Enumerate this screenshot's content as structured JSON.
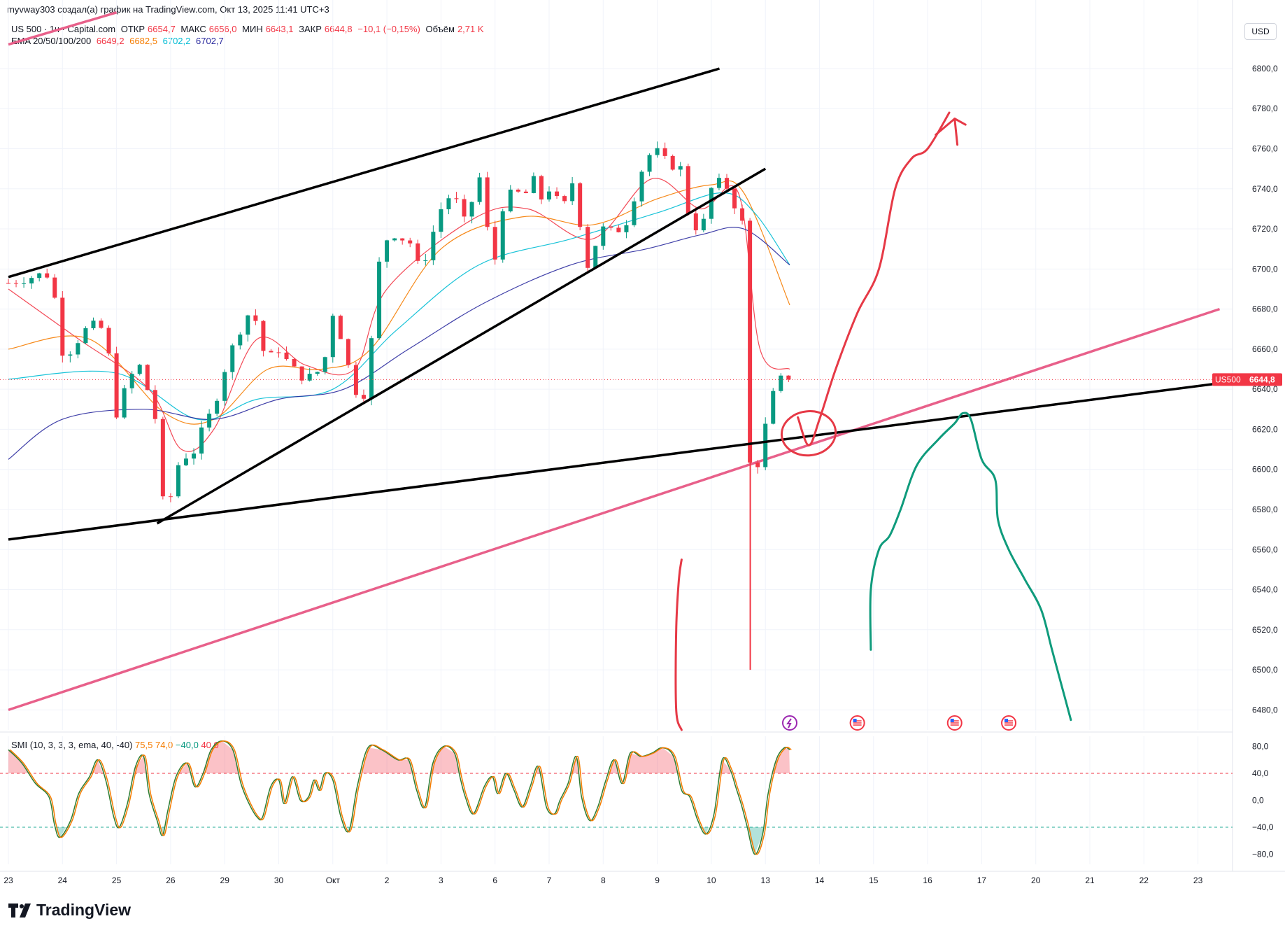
{
  "attribution": "myvway303 создал(а) график на TradingView.com, Окт 13, 2025 11:41 UTC+3",
  "legend": {
    "symbol": "US 500 · 1ч · Capital.com",
    "open_label": "ОТКР",
    "open": "6654,7",
    "high_label": "МАКС",
    "high": "6656,0",
    "low_label": "МИН",
    "low": "6643,1",
    "close_label": "ЗАКР",
    "close": "6644,8",
    "change": "−10,1 (−0,15%)",
    "volume_label": "Объём",
    "volume": "2,71 K",
    "ema_label": "EMA 20/50/100/200",
    "ema20": "6649,2",
    "ema50": "6682,5",
    "ema100": "6702,2",
    "ema200": "6702,7"
  },
  "smi_legend": {
    "label": "SMI (10, 3, 3, 3, ema, 40, -40)",
    "v1": "75,5",
    "v2": "74,0",
    "v3": "−40,0",
    "v4": "40,0"
  },
  "currency": "USD",
  "price_tag": {
    "symbol": "US500",
    "value": "6644,8"
  },
  "brand": "TradingView",
  "colors": {
    "up": "#089981",
    "down": "#f23645",
    "ema20": "#f23645",
    "ema50": "#f57c00",
    "ema100": "#00bcd4",
    "ema200": "#2a2a9e",
    "trend": "#000000",
    "pink": "#e8608a",
    "drawing_red": "#e63946",
    "drawing_green": "#0f9b7c"
  },
  "chart_data": {
    "type": "candlestick",
    "timeframe": "1h",
    "y_axis": {
      "range": [
        6470,
        6815
      ],
      "ticks": [
        "6800,0",
        "6780,0",
        "6760,0",
        "6740,0",
        "6720,0",
        "6700,0",
        "6680,0",
        "6660,0",
        "6640,0",
        "6620,0",
        "6600,0",
        "6580,0",
        "6560,0",
        "6540,0",
        "6520,0",
        "6500,0",
        "6480,0"
      ],
      "tick_values": [
        6800,
        6780,
        6760,
        6740,
        6720,
        6700,
        6680,
        6660,
        6640,
        6620,
        6600,
        6580,
        6560,
        6540,
        6520,
        6500,
        6480
      ]
    },
    "x_axis": {
      "labels": [
        "23",
        "24",
        "25",
        "26",
        "29",
        "30",
        "Окт",
        "2",
        "3",
        "6",
        "7",
        "8",
        "9",
        "10",
        "13",
        "14",
        "15",
        "16",
        "17",
        "20",
        "21",
        "22",
        "23"
      ],
      "trading_day_index": [
        0,
        1,
        2,
        3,
        4,
        5,
        6,
        7,
        8,
        9,
        10,
        11,
        12,
        13,
        14,
        15,
        16,
        17,
        18,
        19,
        20,
        21,
        22
      ],
      "data_end_day": 14.45
    },
    "price_anchors": [
      [
        0.0,
        6693
      ],
      [
        0.3,
        6695
      ],
      [
        0.7,
        6698
      ],
      [
        0.82,
        6690
      ],
      [
        0.9,
        6680
      ],
      [
        0.95,
        6660
      ],
      [
        1.05,
        6658
      ],
      [
        1.2,
        6660
      ],
      [
        1.35,
        6668
      ],
      [
        1.55,
        6672
      ],
      [
        1.75,
        6670
      ],
      [
        1.85,
        6658
      ],
      [
        1.95,
        6638
      ],
      [
        2.0,
        6628
      ],
      [
        2.1,
        6636
      ],
      [
        2.3,
        6648
      ],
      [
        2.45,
        6652
      ],
      [
        2.55,
        6642
      ],
      [
        2.65,
        6632
      ],
      [
        2.75,
        6622
      ],
      [
        2.8,
        6600
      ],
      [
        2.85,
        6585
      ],
      [
        2.92,
        6578
      ],
      [
        2.98,
        6582
      ],
      [
        3.05,
        6598
      ],
      [
        3.2,
        6605
      ],
      [
        3.35,
        6608
      ],
      [
        3.5,
        6610
      ],
      [
        3.6,
        6622
      ],
      [
        3.75,
        6628
      ],
      [
        3.9,
        6640
      ],
      [
        4.0,
        6650
      ],
      [
        4.2,
        6665
      ],
      [
        4.4,
        6676
      ],
      [
        4.5,
        6680
      ],
      [
        4.6,
        6672
      ],
      [
        4.7,
        6660
      ],
      [
        4.8,
        6655
      ],
      [
        5.0,
        6660
      ],
      [
        5.2,
        6652
      ],
      [
        5.35,
        6648
      ],
      [
        5.5,
        6645
      ],
      [
        5.7,
        6648
      ],
      [
        5.85,
        6655
      ],
      [
        6.0,
        6678
      ],
      [
        6.1,
        6672
      ],
      [
        6.2,
        6660
      ],
      [
        6.3,
        6650
      ],
      [
        6.42,
        6640
      ],
      [
        6.5,
        6632
      ],
      [
        6.6,
        6640
      ],
      [
        6.7,
        6660
      ],
      [
        6.8,
        6690
      ],
      [
        6.9,
        6712
      ],
      [
        7.1,
        6718
      ],
      [
        7.3,
        6715
      ],
      [
        7.5,
        6712
      ],
      [
        7.6,
        6698
      ],
      [
        7.7,
        6705
      ],
      [
        7.85,
        6718
      ],
      [
        8.0,
        6730
      ],
      [
        8.2,
        6738
      ],
      [
        8.35,
        6730
      ],
      [
        8.5,
        6718
      ],
      [
        8.6,
        6740
      ],
      [
        8.7,
        6748
      ],
      [
        8.8,
        6730
      ],
      [
        8.9,
        6712
      ],
      [
        9.0,
        6705
      ],
      [
        9.1,
        6728
      ],
      [
        9.2,
        6735
      ],
      [
        9.4,
        6740
      ],
      [
        9.5,
        6732
      ],
      [
        9.6,
        6740
      ],
      [
        9.7,
        6745
      ],
      [
        9.85,
        6735
      ],
      [
        10.0,
        6740
      ],
      [
        10.1,
        6735
      ],
      [
        10.3,
        6732
      ],
      [
        10.45,
        6745
      ],
      [
        10.55,
        6728
      ],
      [
        10.65,
        6705
      ],
      [
        10.75,
        6700
      ],
      [
        10.85,
        6712
      ],
      [
        11.0,
        6720
      ],
      [
        11.2,
        6718
      ],
      [
        11.4,
        6722
      ],
      [
        11.5,
        6728
      ],
      [
        11.65,
        6745
      ],
      [
        11.8,
        6755
      ],
      [
        11.95,
        6760
      ],
      [
        12.1,
        6755
      ],
      [
        12.25,
        6752
      ],
      [
        12.45,
        6750
      ],
      [
        12.55,
        6730
      ],
      [
        12.7,
        6722
      ],
      [
        12.8,
        6715
      ],
      [
        12.9,
        6730
      ],
      [
        13.05,
        6745
      ],
      [
        13.2,
        6742
      ],
      [
        13.35,
        6740
      ],
      [
        13.45,
        6730
      ],
      [
        13.5,
        6752
      ],
      [
        13.55,
        6740
      ],
      [
        13.6,
        6700
      ],
      [
        13.65,
        6640
      ],
      [
        13.7,
        6612
      ],
      [
        13.75,
        6580
      ],
      [
        13.8,
        6560
      ],
      [
        13.85,
        6602
      ],
      [
        13.95,
        6615
      ],
      [
        14.05,
        6628
      ],
      [
        14.15,
        6638
      ],
      [
        14.25,
        6642
      ],
      [
        14.35,
        6650
      ],
      [
        14.45,
        6645
      ]
    ],
    "ema_anchors": {
      "ema20": [
        [
          0,
          6690
        ],
        [
          1.3,
          6665
        ],
        [
          2.6,
          6640
        ],
        [
          3.2,
          6610
        ],
        [
          3.8,
          6620
        ],
        [
          4.6,
          6665
        ],
        [
          5.5,
          6652
        ],
        [
          6.4,
          6650
        ],
        [
          7.0,
          6690
        ],
        [
          8.6,
          6725
        ],
        [
          9.6,
          6730
        ],
        [
          10.8,
          6715
        ],
        [
          11.9,
          6745
        ],
        [
          12.8,
          6730
        ],
        [
          13.5,
          6738
        ],
        [
          13.9,
          6660
        ],
        [
          14.45,
          6650
        ]
      ],
      "ema50": [
        [
          0,
          6660
        ],
        [
          1.5,
          6665
        ],
        [
          2.9,
          6628
        ],
        [
          3.8,
          6625
        ],
        [
          4.8,
          6650
        ],
        [
          5.8,
          6650
        ],
        [
          6.7,
          6660
        ],
        [
          8.0,
          6710
        ],
        [
          9.5,
          6726
        ],
        [
          10.8,
          6722
        ],
        [
          12.0,
          6735
        ],
        [
          13.0,
          6742
        ],
        [
          13.6,
          6738
        ],
        [
          14.45,
          6682
        ]
      ],
      "ema100": [
        [
          0,
          6645
        ],
        [
          2.0,
          6648
        ],
        [
          3.5,
          6625
        ],
        [
          4.6,
          6635
        ],
        [
          6.0,
          6640
        ],
        [
          7.2,
          6670
        ],
        [
          8.7,
          6702
        ],
        [
          10.4,
          6715
        ],
        [
          12.0,
          6728
        ],
        [
          13.2,
          6738
        ],
        [
          13.8,
          6728
        ],
        [
          14.45,
          6702
        ]
      ],
      "ema200": [
        [
          0,
          6605
        ],
        [
          1.0,
          6625
        ],
        [
          2.5,
          6630
        ],
        [
          3.8,
          6625
        ],
        [
          5.0,
          6635
        ],
        [
          6.2,
          6640
        ],
        [
          7.4,
          6660
        ],
        [
          8.8,
          6683
        ],
        [
          10.4,
          6702
        ],
        [
          11.8,
          6710
        ],
        [
          12.8,
          6717
        ],
        [
          13.6,
          6720
        ],
        [
          14.45,
          6702
        ]
      ]
    },
    "smi_axis": {
      "range": [
        -95,
        95
      ],
      "ticks": [
        "80,0",
        "40,0",
        "0,0",
        "−40,0",
        "−80,0"
      ],
      "tick_values": [
        80,
        40,
        0,
        -40,
        -80
      ],
      "overbought": 40,
      "oversold": -40
    },
    "smi_anchors": [
      [
        0.0,
        75
      ],
      [
        0.25,
        55
      ],
      [
        0.5,
        25
      ],
      [
        0.75,
        5
      ],
      [
        0.85,
        -35
      ],
      [
        0.95,
        -55
      ],
      [
        1.15,
        -30
      ],
      [
        1.3,
        10
      ],
      [
        1.5,
        35
      ],
      [
        1.65,
        60
      ],
      [
        1.8,
        30
      ],
      [
        1.95,
        -25
      ],
      [
        2.05,
        -40
      ],
      [
        2.2,
        -5
      ],
      [
        2.35,
        50
      ],
      [
        2.5,
        65
      ],
      [
        2.6,
        10
      ],
      [
        2.75,
        -30
      ],
      [
        2.85,
        -52
      ],
      [
        2.95,
        -15
      ],
      [
        3.1,
        35
      ],
      [
        3.3,
        55
      ],
      [
        3.45,
        20
      ],
      [
        3.6,
        40
      ],
      [
        3.75,
        75
      ],
      [
        3.95,
        88
      ],
      [
        4.15,
        75
      ],
      [
        4.3,
        25
      ],
      [
        4.45,
        -5
      ],
      [
        4.6,
        -25
      ],
      [
        4.7,
        -25
      ],
      [
        4.85,
        20
      ],
      [
        5.0,
        30
      ],
      [
        5.1,
        -5
      ],
      [
        5.25,
        35
      ],
      [
        5.4,
        0
      ],
      [
        5.55,
        5
      ],
      [
        5.65,
        30
      ],
      [
        5.75,
        15
      ],
      [
        5.85,
        40
      ],
      [
        6.0,
        30
      ],
      [
        6.15,
        -25
      ],
      [
        6.3,
        -45
      ],
      [
        6.45,
        20
      ],
      [
        6.65,
        78
      ],
      [
        6.9,
        75
      ],
      [
        7.2,
        60
      ],
      [
        7.4,
        60
      ],
      [
        7.55,
        15
      ],
      [
        7.7,
        -10
      ],
      [
        7.85,
        55
      ],
      [
        8.05,
        80
      ],
      [
        8.25,
        70
      ],
      [
        8.35,
        35
      ],
      [
        8.45,
        5
      ],
      [
        8.6,
        -20
      ],
      [
        8.8,
        20
      ],
      [
        8.95,
        35
      ],
      [
        9.05,
        10
      ],
      [
        9.2,
        40
      ],
      [
        9.35,
        15
      ],
      [
        9.5,
        -10
      ],
      [
        9.65,
        20
      ],
      [
        9.8,
        50
      ],
      [
        9.95,
        -10
      ],
      [
        10.1,
        -20
      ],
      [
        10.2,
        0
      ],
      [
        10.35,
        25
      ],
      [
        10.5,
        65
      ],
      [
        10.6,
        5
      ],
      [
        10.75,
        -30
      ],
      [
        10.9,
        -10
      ],
      [
        11.05,
        30
      ],
      [
        11.2,
        60
      ],
      [
        11.35,
        25
      ],
      [
        11.5,
        70
      ],
      [
        11.7,
        65
      ],
      [
        11.9,
        70
      ],
      [
        12.1,
        78
      ],
      [
        12.3,
        65
      ],
      [
        12.45,
        15
      ],
      [
        12.6,
        5
      ],
      [
        12.75,
        -30
      ],
      [
        12.9,
        -50
      ],
      [
        13.05,
        -20
      ],
      [
        13.2,
        60
      ],
      [
        13.35,
        45
      ],
      [
        13.45,
        20
      ],
      [
        13.55,
        -5
      ],
      [
        13.65,
        -35
      ],
      [
        13.8,
        -80
      ],
      [
        13.95,
        -50
      ],
      [
        14.05,
        10
      ],
      [
        14.2,
        60
      ],
      [
        14.35,
        78
      ],
      [
        14.45,
        75
      ]
    ],
    "drawings": {
      "black_lines": [
        [
          [
            0.0,
            6696
          ],
          [
            13.15,
            6800
          ]
        ],
        [
          [
            2.75,
            6573
          ],
          [
            14.0,
            6750
          ]
        ],
        [
          [
            0.0,
            6565
          ],
          [
            22.4,
            6643
          ]
        ]
      ],
      "pink_lines": [
        [
          [
            0.0,
            6480
          ],
          [
            22.4,
            6680
          ]
        ],
        [
          [
            0.0,
            6812
          ],
          [
            2.0,
            6828
          ]
        ]
      ],
      "red_arrow_curve": [
        [
          14.6,
          6626
        ],
        [
          14.8,
          6612
        ],
        [
          15.0,
          6625
        ],
        [
          15.3,
          6650
        ],
        [
          15.7,
          6678
        ],
        [
          16.1,
          6700
        ],
        [
          16.4,
          6740
        ],
        [
          16.7,
          6755
        ],
        [
          17.0,
          6760
        ],
        [
          17.4,
          6778
        ]
      ],
      "red_arrow_head": [
        [
          17.15,
          6767
        ],
        [
          17.5,
          6775
        ],
        [
          17.7,
          6772
        ]
      ],
      "red_circle": {
        "center": [
          14.8,
          6618
        ],
        "radius": [
          0.5,
          11
        ]
      },
      "red_vertical_squiggle": [
        [
          12.45,
          6555
        ],
        [
          12.4,
          6545
        ],
        [
          12.35,
          6520
        ],
        [
          12.35,
          6480
        ],
        [
          12.45,
          6470
        ]
      ],
      "green_curve": [
        [
          15.95,
          6510
        ],
        [
          15.95,
          6540
        ],
        [
          16.1,
          6560
        ],
        [
          16.3,
          6567
        ],
        [
          16.5,
          6580
        ],
        [
          16.8,
          6602
        ],
        [
          17.2,
          6615
        ],
        [
          17.5,
          6623
        ],
        [
          17.65,
          6628
        ],
        [
          17.8,
          6625
        ],
        [
          18.0,
          6605
        ],
        [
          18.25,
          6595
        ],
        [
          18.3,
          6575
        ],
        [
          18.5,
          6560
        ],
        [
          18.8,
          6545
        ],
        [
          19.1,
          6530
        ],
        [
          19.3,
          6510
        ],
        [
          19.5,
          6490
        ],
        [
          19.65,
          6475
        ]
      ]
    },
    "event_markers_day": [
      14.45,
      15.7,
      17.5,
      18.5
    ]
  }
}
